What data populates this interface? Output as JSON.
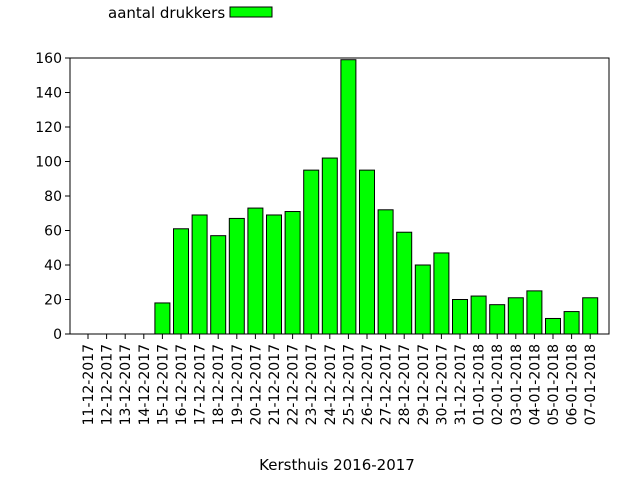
{
  "chart_data": {
    "type": "bar",
    "title": "",
    "xlabel": "Kersthuis 2016-2017",
    "ylabel": "",
    "ylim": [
      0,
      160
    ],
    "yticks": [
      0,
      20,
      40,
      60,
      80,
      100,
      120,
      140,
      160
    ],
    "grid": false,
    "legend_position": "top-left",
    "bar_color": "#00ff00",
    "bar_edge_color": "#000000",
    "categories": [
      "11-12-2017",
      "12-12-2017",
      "13-12-2017",
      "14-12-2017",
      "15-12-2017",
      "16-12-2017",
      "17-12-2017",
      "18-12-2017",
      "19-12-2017",
      "20-12-2017",
      "21-12-2017",
      "22-12-2017",
      "23-12-2017",
      "24-12-2017",
      "25-12-2017",
      "26-12-2017",
      "27-12-2017",
      "28-12-2017",
      "29-12-2017",
      "30-12-2017",
      "31-12-2017",
      "01-01-2018",
      "02-01-2018",
      "03-01-2018",
      "04-01-2018",
      "05-01-2018",
      "06-01-2018",
      "07-01-2018"
    ],
    "series": [
      {
        "name": "aantal drukkers",
        "values": [
          0,
          0,
          0,
          0,
          18,
          61,
          69,
          57,
          67,
          73,
          69,
          71,
          95,
          102,
          159,
          95,
          72,
          59,
          40,
          47,
          20,
          22,
          17,
          21,
          25,
          9,
          13,
          21
        ]
      }
    ]
  }
}
